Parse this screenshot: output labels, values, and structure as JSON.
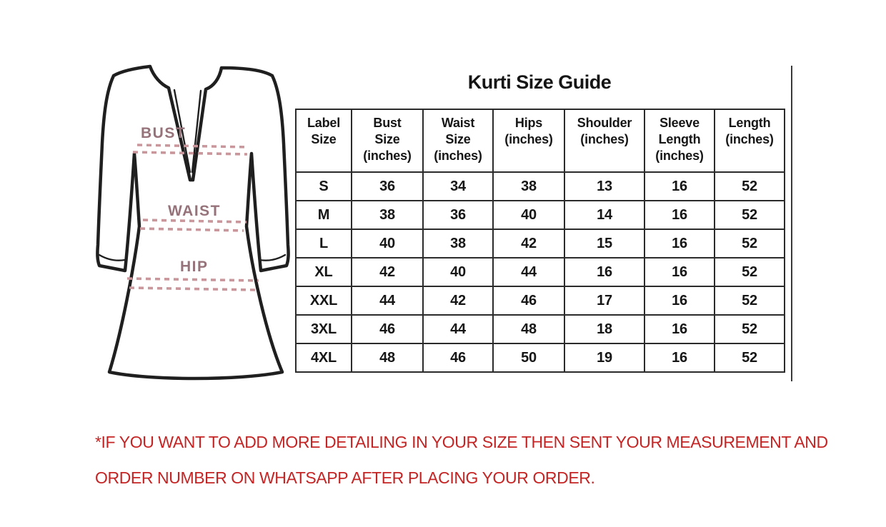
{
  "title": "Kurti Size Guide",
  "diagram": {
    "bust_label": "BUST",
    "waist_label": "WAIST",
    "hip_label": "HIP",
    "label_color": "#96737a",
    "dash_color": "#c8969b",
    "outline_color": "#1f1f1f"
  },
  "size_table": {
    "columns": [
      "Label\nSize",
      "Bust\nSize\n(inches)",
      "Waist\nSize\n(inches)",
      "Hips\n(inches)",
      "Shoulder\n(inches)",
      "Sleeve\nLength\n(inches)",
      "Length\n(inches)"
    ],
    "rows": [
      [
        "S",
        "36",
        "34",
        "38",
        "13",
        "16",
        "52"
      ],
      [
        "M",
        "38",
        "36",
        "40",
        "14",
        "16",
        "52"
      ],
      [
        "L",
        "40",
        "38",
        "42",
        "15",
        "16",
        "52"
      ],
      [
        "XL",
        "42",
        "40",
        "44",
        "16",
        "16",
        "52"
      ],
      [
        "XXL",
        "44",
        "42",
        "46",
        "17",
        "16",
        "52"
      ],
      [
        "3XL",
        "46",
        "44",
        "48",
        "18",
        "16",
        "52"
      ],
      [
        "4XL",
        "48",
        "46",
        "50",
        "19",
        "16",
        "52"
      ]
    ]
  },
  "note": {
    "line1": "*IF YOU WANT TO ADD MORE DETAILING IN YOUR SIZE THEN SENT YOUR MEASUREMENT AND",
    "line2": "ORDER NUMBER ON WHATSAPP AFTER PLACING YOUR ORDER.",
    "color": "#c42423"
  }
}
